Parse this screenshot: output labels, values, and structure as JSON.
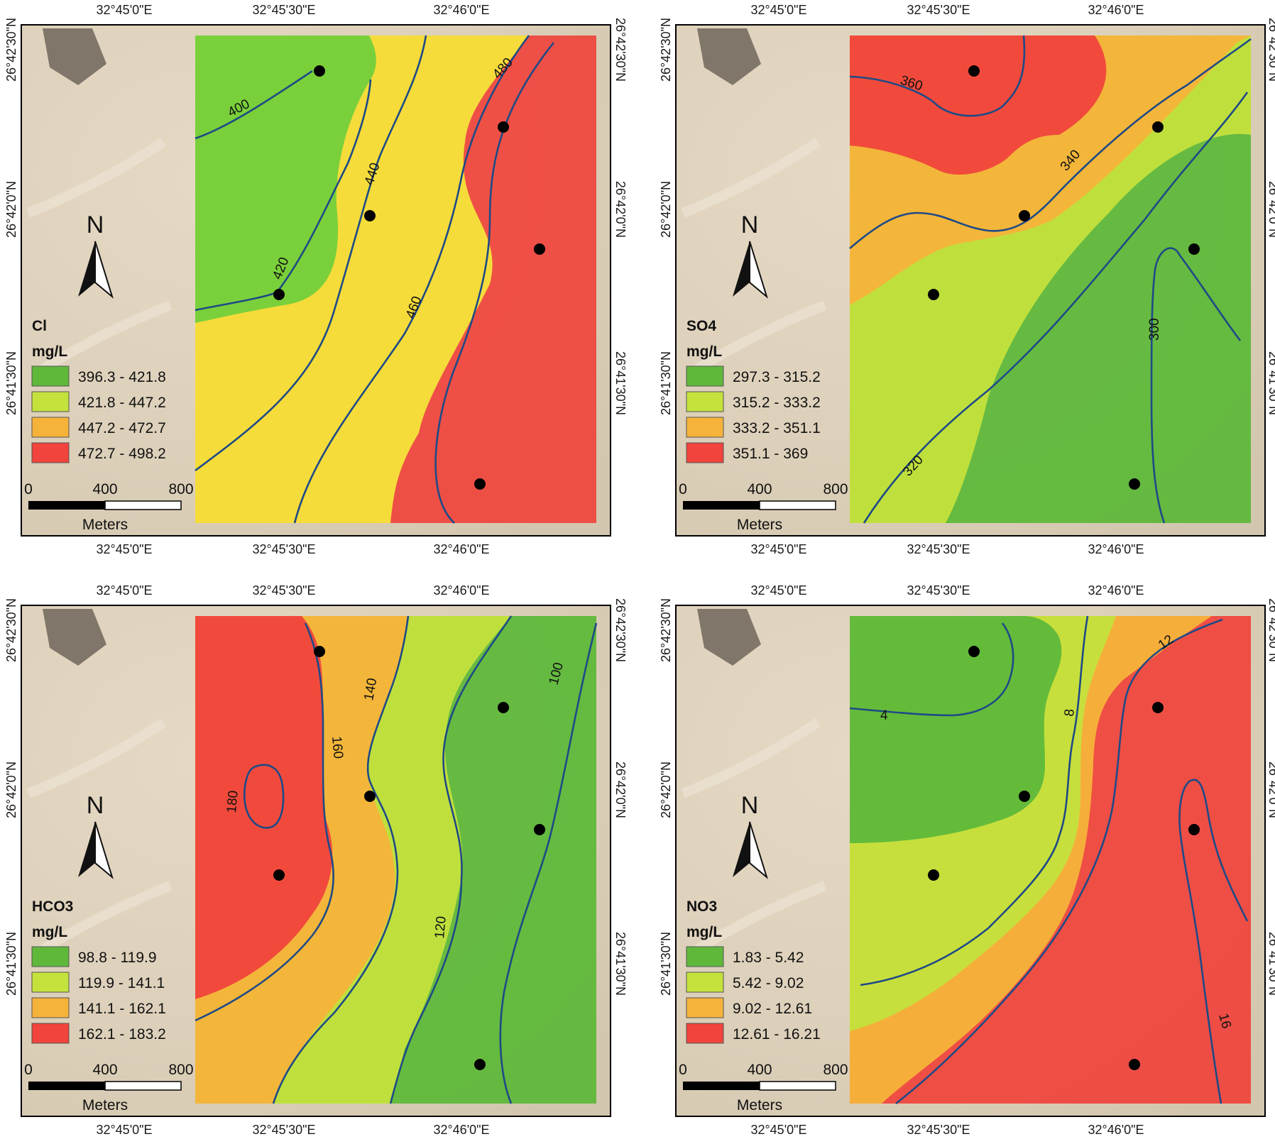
{
  "lon_labels": [
    "32°45'0\"E",
    "32°45'30\"E",
    "32°46'0\"E"
  ],
  "lat_labels": [
    "26°42'30\"N",
    "26°42'0\"N",
    "26°41'30\"N"
  ],
  "north_label": "N",
  "scale_bar": {
    "ticks": [
      "0",
      "400",
      "800"
    ],
    "unit": "Meters"
  },
  "colors": {
    "class1": "#5fb83a",
    "class2": "#c4e23c",
    "class3": "#f6b33a",
    "class4": "#f0443c",
    "contour": "#1f4a86",
    "sample": "#000000"
  },
  "maps": [
    {
      "parameter": "Cl",
      "unit": "mg/L",
      "legend": [
        "396.3 - 421.8",
        "421.8 - 447.2",
        "447.2 - 472.7",
        "472.7 - 498.2"
      ],
      "contours": [
        "400",
        "420",
        "440",
        "460",
        "480"
      ]
    },
    {
      "parameter": "SO4",
      "unit": "mg/L",
      "legend": [
        "297.3 - 315.2",
        "315.2 - 333.2",
        "333.2 - 351.1",
        "351.1 - 369"
      ],
      "contours": [
        "360",
        "340",
        "320",
        "300"
      ]
    },
    {
      "parameter": "HCO3",
      "unit": "mg/L",
      "legend": [
        "98.8 - 119.9",
        "119.9 - 141.1",
        "141.1 - 162.1",
        "162.1 - 183.2"
      ],
      "contours": [
        "180",
        "160",
        "140",
        "120",
        "100"
      ]
    },
    {
      "parameter": "NO3",
      "unit": "mg/L",
      "legend": [
        "1.83 - 5.42",
        "5.42 - 9.02",
        "9.02 - 12.61",
        "12.61 - 16.21"
      ],
      "contours": [
        "4",
        "8",
        "12",
        "16"
      ]
    }
  ]
}
